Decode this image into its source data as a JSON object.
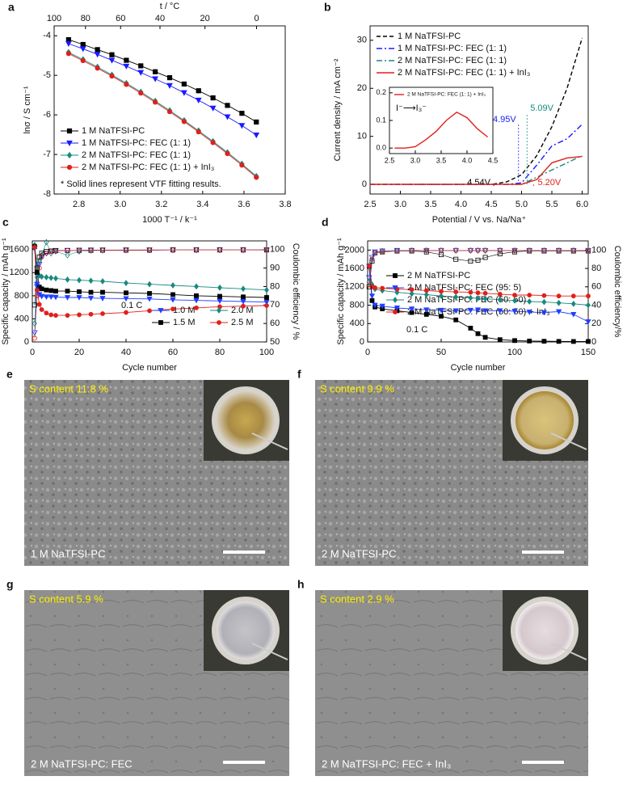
{
  "chart_data": [
    {
      "type": "line",
      "label": "a",
      "xlabel": "1000 T⁻¹ / k⁻¹",
      "ylabel": "lnσ / S cm⁻¹",
      "x2label": "t / °C",
      "xlim": [
        2.68,
        3.8
      ],
      "xticks": [
        2.8,
        {
          "value": 3,
          "label": "3.0"
        },
        3.2,
        3.4,
        3.6,
        3.8
      ],
      "x2ticks": [
        {
          "value": 2.68,
          "label": "100"
        },
        {
          "value": 2.832,
          "label": "80"
        },
        {
          "value": 3.002,
          "label": "60"
        },
        {
          "value": 3.193,
          "label": "40"
        },
        {
          "value": 3.411,
          "label": "20"
        },
        {
          "value": 3.661,
          "label": "0"
        }
      ],
      "ylim": [
        -8,
        -3.75
      ],
      "yticks": [
        -8,
        -7,
        -6,
        -5,
        -4
      ],
      "legend": "lower left",
      "annotations": [
        "* Solid lines represent VTF fitting results."
      ],
      "x": [
        2.75,
        2.82,
        2.89,
        2.96,
        3.03,
        3.1,
        3.17,
        3.24,
        3.31,
        3.38,
        3.45,
        3.52,
        3.59,
        3.66
      ],
      "series": [
        {
          "name": "1 M NaTFSI-PC",
          "color": "#000000",
          "marker": "square",
          "values": [
            -4.1,
            -4.22,
            -4.35,
            -4.48,
            -4.62,
            -4.76,
            -4.91,
            -5.06,
            -5.22,
            -5.39,
            -5.57,
            -5.76,
            -5.96,
            -6.18
          ]
        },
        {
          "name": "1 M NaTFSI-PC: FEC (1: 1)",
          "color": "#1a1aff",
          "marker": "triangle-down",
          "values": [
            -4.2,
            -4.33,
            -4.47,
            -4.62,
            -4.77,
            -4.93,
            -5.09,
            -5.26,
            -5.44,
            -5.63,
            -5.83,
            -6.05,
            -6.27,
            -6.51
          ]
        },
        {
          "name": "2 M NaTFSI-PC: FEC (1: 1)",
          "color": "#168a80",
          "marker": "diamond",
          "values": [
            -4.42,
            -4.6,
            -4.79,
            -4.99,
            -5.2,
            -5.42,
            -5.65,
            -5.89,
            -6.14,
            -6.4,
            -6.67,
            -6.95,
            -7.24,
            -7.55
          ]
        },
        {
          "name": "2 M NaTFSI-PC: FEC (1: 1) + InI₃",
          "color": "#e0201b",
          "marker": "circle",
          "values": [
            -4.45,
            -4.63,
            -4.82,
            -5.02,
            -5.23,
            -5.45,
            -5.68,
            -5.92,
            -6.17,
            -6.43,
            -6.7,
            -6.98,
            -7.27,
            -7.58
          ]
        }
      ]
    },
    {
      "type": "line",
      "label": "b",
      "xlabel": "Potential / V vs. Na/Na⁺",
      "ylabel": "Current density / mA cm⁻²",
      "xlim": [
        2.5,
        6.1
      ],
      "xticks": [
        2.5,
        {
          "value": 3,
          "label": "3.0"
        },
        3.5,
        {
          "value": 4,
          "label": "4.0"
        },
        4.5,
        {
          "value": 5,
          "label": "5.0"
        },
        5.5,
        {
          "value": 6,
          "label": "6.0"
        }
      ],
      "ylim": [
        -2,
        33
      ],
      "yticks": [
        0,
        10,
        20,
        30
      ],
      "legend": "upper right",
      "x": [
        2.5,
        3.0,
        3.5,
        4.0,
        4.5,
        4.75,
        5.0,
        5.25,
        5.5,
        5.75,
        6.0
      ],
      "series": [
        {
          "name": "1 M NaTFSI-PC",
          "color": "#000000",
          "dash": "dash",
          "onset": 4.54,
          "onset_label": "4.54V",
          "values": [
            0,
            0,
            0,
            0,
            0,
            0.5,
            2,
            6,
            12,
            20,
            30.5
          ]
        },
        {
          "name": "1 M NaTFSI-PC: FEC (1: 1)",
          "color": "#1a1aff",
          "dash": "dashdot",
          "onset": 4.95,
          "onset_label": "4.95V",
          "values": [
            0,
            0,
            0,
            0,
            0,
            0,
            0.3,
            4,
            8,
            9.5,
            12.5
          ]
        },
        {
          "name": "2 M NaTFSI-PC: FEC (1: 1)",
          "color": "#168a80",
          "dash": "dashdot",
          "onset": 5.09,
          "onset_label": "5.09V",
          "values": [
            0,
            0,
            0,
            0,
            0,
            0,
            0,
            1.5,
            3,
            4.5,
            6
          ]
        },
        {
          "name": "2 M NaTFSI-PC: FEC (1: 1) + InI₃",
          "color": "#e0201b",
          "onset": 5.2,
          "onset_label": "5.20V",
          "values": [
            0,
            0,
            0,
            0,
            0,
            0,
            0,
            1,
            4.5,
            5.5,
            5.8
          ]
        }
      ]
    },
    {
      "type": "line",
      "legend": "upper left",
      "annotations": [
        "I⁻⟶I₃⁻"
      ],
      "xlim": [
        2.5,
        4.5
      ],
      "xticks": [
        2.5,
        {
          "value": 3,
          "label": "3.0"
        },
        3.5,
        {
          "value": 4,
          "label": "4.0"
        },
        4.5
      ],
      "ylim": [
        -0.02,
        0.22
      ],
      "yticks": [
        {
          "value": 0,
          "label": "0.0"
        },
        0.1,
        0.2
      ],
      "x": [
        2.6,
        2.8,
        3.0,
        3.2,
        3.4,
        3.6,
        3.8,
        4.0,
        4.2,
        4.4
      ],
      "series": [
        {
          "name": "2 M NaTFSI-PC: FEC (1: 1) + InI₃",
          "color": "#e0201b",
          "values": [
            0,
            0,
            0.005,
            0.03,
            0.06,
            0.1,
            0.13,
            0.11,
            0.07,
            0.04
          ]
        }
      ]
    },
    {
      "type": "line",
      "label": "c",
      "xlabel": "Cycle number",
      "ylabel": "Specific capacity / mAh g⁻¹",
      "y2label": "Coulombic efficiency / %",
      "xlim": [
        0,
        100
      ],
      "xticks": [
        0,
        20,
        40,
        60,
        80,
        100
      ],
      "ylim": [
        0,
        1750
      ],
      "yticks": [
        0,
        400,
        800,
        1200,
        1600
      ],
      "y2lim": [
        50,
        104.7
      ],
      "y2ticks": [
        50,
        60,
        70,
        80,
        90,
        100
      ],
      "legend": "lower right",
      "legend_columns": 2,
      "annotations": [
        "0.1 C"
      ],
      "x": [
        1,
        2,
        3,
        4,
        6,
        8,
        10,
        15,
        20,
        25,
        30,
        40,
        50,
        60,
        70,
        80,
        90,
        100
      ],
      "series": [
        {
          "name": "1.0 M",
          "color": "#1f3fff",
          "marker": "triangle-down",
          "values": [
            1620,
            1000,
            820,
            790,
            780,
            780,
            775,
            770,
            770,
            760,
            755,
            750,
            745,
            730,
            720,
            710,
            700,
            690
          ]
        },
        {
          "name": "2.0 M",
          "color": "#168a80",
          "marker": "diamond",
          "values": [
            1680,
            1300,
            1150,
            1130,
            1120,
            1110,
            1100,
            1080,
            1070,
            1060,
            1050,
            1020,
            1000,
            980,
            960,
            940,
            920,
            900
          ]
        },
        {
          "name": "1.5 M",
          "color": "#000000",
          "marker": "square",
          "values": [
            1650,
            1200,
            950,
            920,
            900,
            890,
            880,
            880,
            870,
            860,
            860,
            850,
            840,
            820,
            800,
            790,
            780,
            770
          ]
        },
        {
          "name": "2.5 M",
          "color": "#e0201b",
          "marker": "circle",
          "values": [
            1640,
            900,
            650,
            560,
            500,
            470,
            460,
            460,
            470,
            480,
            490,
            510,
            540,
            570,
            590,
            610,
            620,
            630
          ]
        },
        {
          "color": "#1f3fff",
          "marker": "triangle-down",
          "open": true,
          "axis": "y2",
          "values": [
            55,
            80,
            92,
            96,
            98,
            99,
            99.5,
            99.5,
            99.6,
            99.7,
            99.7,
            99.8,
            99.8,
            99.8,
            99.8,
            99.8,
            99.8,
            99.8
          ]
        },
        {
          "color": "#168a80",
          "marker": "diamond",
          "open": true,
          "axis": "y2",
          "values": [
            60,
            85,
            94,
            97,
            104,
            98,
            99,
            97,
            99,
            99.5,
            99.6,
            99.7,
            99.7,
            99.8,
            99.8,
            99.8,
            99.8,
            99.8
          ]
        },
        {
          "color": "#000000",
          "marker": "square",
          "open": true,
          "axis": "y2",
          "values": [
            70,
            90,
            96,
            98,
            99,
            99.2,
            99.4,
            99.5,
            99.6,
            99.6,
            99.7,
            99.7,
            99.7,
            99.8,
            99.8,
            99.8,
            99.8,
            99.8
          ]
        },
        {
          "color": "#e0201b",
          "marker": "circle",
          "open": true,
          "axis": "y2",
          "values": [
            52,
            75,
            90,
            96,
            98,
            99,
            99.3,
            99.5,
            99.6,
            99.6,
            99.7,
            99.7,
            99.8,
            99.8,
            99.8,
            99.8,
            99.8,
            99.9
          ]
        }
      ]
    },
    {
      "type": "line",
      "label": "d",
      "xlabel": "Cycle number",
      "ylabel": "Specific capacity / mAh g⁻¹",
      "y2label": "Coulombic efficiency/%",
      "xlim": [
        0,
        150
      ],
      "xticks": [
        0,
        50,
        100,
        150
      ],
      "ylim": [
        0,
        2200
      ],
      "yticks": [
        0,
        400,
        800,
        1200,
        1600,
        2000
      ],
      "y2lim": [
        0,
        110
      ],
      "y2ticks": [
        0,
        20,
        40,
        60,
        80,
        100
      ],
      "legend": "upper left",
      "annotations": [
        "0.1 C"
      ],
      "x": [
        1,
        3,
        5,
        10,
        20,
        30,
        40,
        50,
        60,
        70,
        75,
        80,
        90,
        100,
        110,
        120,
        130,
        140,
        150
      ],
      "series": [
        {
          "name": "2 M NaTFSI-PC",
          "color": "#000000",
          "marker": "square",
          "values": [
            1650,
            900,
            760,
            720,
            680,
            640,
            600,
            560,
            480,
            300,
            180,
            100,
            50,
            30,
            20,
            15,
            12,
            10,
            10
          ]
        },
        {
          "name": "2 M NaTFSI-PC: FEC (95: 5)",
          "color": "#1f3fff",
          "marker": "triangle-down",
          "values": [
            1650,
            1000,
            800,
            780,
            740,
            720,
            700,
            690,
            680,
            690,
            700,
            680,
            680,
            670,
            650,
            640,
            660,
            600,
            440
          ]
        },
        {
          "name": "2 M NaTFSI-PC: FEC (50: 50)",
          "color": "#168a80",
          "marker": "diamond",
          "values": [
            1650,
            1250,
            1150,
            1120,
            1080,
            1050,
            1030,
            1000,
            980,
            960,
            950,
            940,
            920,
            900,
            880,
            870,
            850,
            830,
            800
          ]
        },
        {
          "name": "2 M NaTFSI-PC: FEC (50: 50) + InI₃",
          "color": "#e0201b",
          "marker": "circle",
          "values": [
            1650,
            1200,
            1180,
            1170,
            1150,
            1140,
            1120,
            1100,
            1090,
            1080,
            1070,
            1060,
            1040,
            1020,
            1020,
            1010,
            1000,
            1000,
            1000
          ]
        },
        {
          "color": "#000000",
          "marker": "square",
          "open": true,
          "axis": "y2",
          "values": [
            60,
            88,
            97,
            98,
            99,
            99,
            98,
            95,
            90,
            88,
            89,
            92,
            96,
            98,
            99,
            99,
            99,
            99,
            99
          ]
        },
        {
          "color": "#1f3fff",
          "marker": "triangle-down",
          "open": true,
          "axis": "y2",
          "values": [
            70,
            92,
            98,
            99,
            99.5,
            99.5,
            99.5,
            99.5,
            99.5,
            99.5,
            99.5,
            99.5,
            99.5,
            99.5,
            99.5,
            99.5,
            99.5,
            99.5,
            99.5
          ]
        },
        {
          "color": "#168a80",
          "marker": "diamond",
          "open": true,
          "axis": "y2",
          "values": [
            65,
            90,
            97,
            99,
            99,
            99.5,
            99.5,
            99.5,
            99.5,
            99.5,
            99.5,
            99.5,
            99.5,
            99.5,
            99.5,
            99.5,
            99.5,
            99.5,
            99.5
          ]
        },
        {
          "color": "#e0201b",
          "marker": "circle",
          "open": true,
          "axis": "y2",
          "values": [
            62,
            90,
            97,
            98.5,
            99,
            99.5,
            99.5,
            99.5,
            99.5,
            99.5,
            99.5,
            99.5,
            99.5,
            99.5,
            99.5,
            99.5,
            99.5,
            99.5,
            99.5
          ]
        }
      ]
    }
  ],
  "micrographs": [
    {
      "label": "e",
      "s_content": "S content 11.8 %",
      "sample": "1 M NaTFSI-PC"
    },
    {
      "label": "f",
      "s_content": "S content 9.9 %",
      "sample": "2 M NaTFSI-PC"
    },
    {
      "label": "g",
      "s_content": "S content 5.9 %",
      "sample": "2 M NaTFSI-PC: FEC"
    },
    {
      "label": "h",
      "s_content": "S content 2.9 %",
      "sample": "2 M NaTFSI-PC: FEC + InI₃"
    }
  ]
}
